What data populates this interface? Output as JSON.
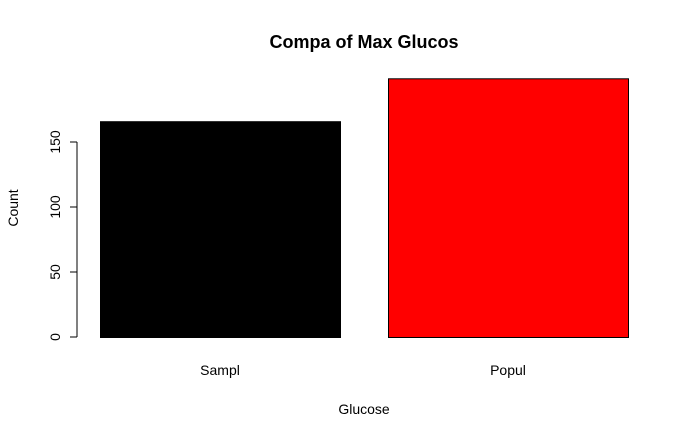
{
  "chart_data": {
    "type": "bar",
    "title": "Compa of Max Glucos",
    "xlabel": "Glucose",
    "ylabel": "Count",
    "categories": [
      "Sampl",
      "Popul"
    ],
    "values": [
      166,
      199
    ],
    "bar_colors": [
      "#000000",
      "#ff0000"
    ],
    "bar_border_color": "#000000",
    "ylim": [
      0,
      199
    ],
    "yticks": [
      0,
      50,
      100,
      150
    ],
    "ytick_labels": [
      "0",
      "50",
      "100",
      "150"
    ],
    "grid": false,
    "legend": "none"
  }
}
